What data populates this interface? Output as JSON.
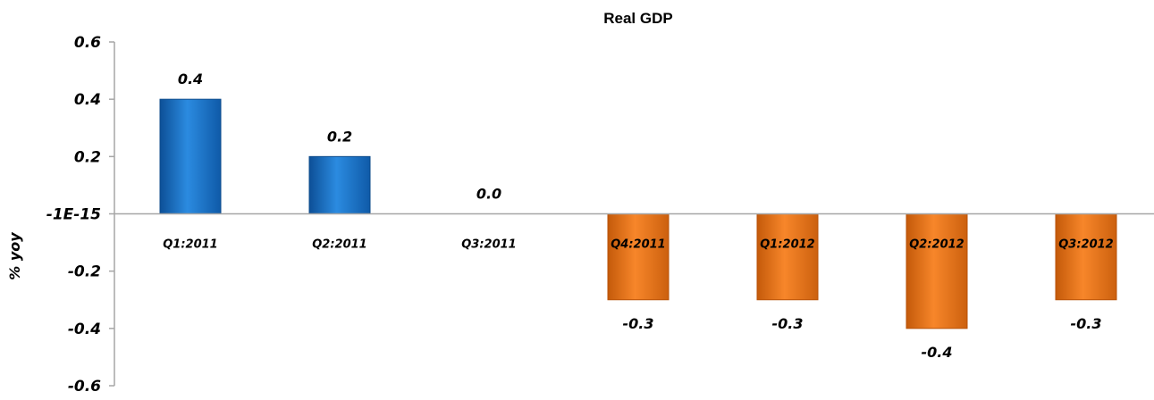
{
  "chart_data": {
    "type": "bar",
    "title": "Real GDP",
    "xlabel": "",
    "ylabel": "% yoy",
    "ylim": [
      -0.6,
      0.6
    ],
    "yticks": [
      {
        "value": 0.6,
        "label": "0.6"
      },
      {
        "value": 0.4,
        "label": "0.4"
      },
      {
        "value": 0.2,
        "label": "0.2"
      },
      {
        "value": 0.0,
        "label": "-1E-15"
      },
      {
        "value": -0.2,
        "label": "-0.2"
      },
      {
        "value": -0.4,
        "label": "-0.4"
      },
      {
        "value": -0.6,
        "label": "-0.6"
      }
    ],
    "categories": [
      "Q1:2011",
      "Q2:2011",
      "Q3:2011",
      "Q4:2011",
      "Q1:2012",
      "Q2:2012",
      "Q3:2012"
    ],
    "values": [
      0.4,
      0.2,
      0.0,
      -0.3,
      -0.3,
      -0.4,
      -0.3
    ],
    "data_labels": [
      "0.4",
      "0.2",
      "0.0",
      "-0.3",
      "-0.3",
      "-0.4",
      "-0.3"
    ],
    "colors": {
      "positive": "#1f77c9",
      "negative": "#f0791a",
      "axis": "#a6a6a6"
    },
    "grid": false,
    "legend": "none"
  }
}
